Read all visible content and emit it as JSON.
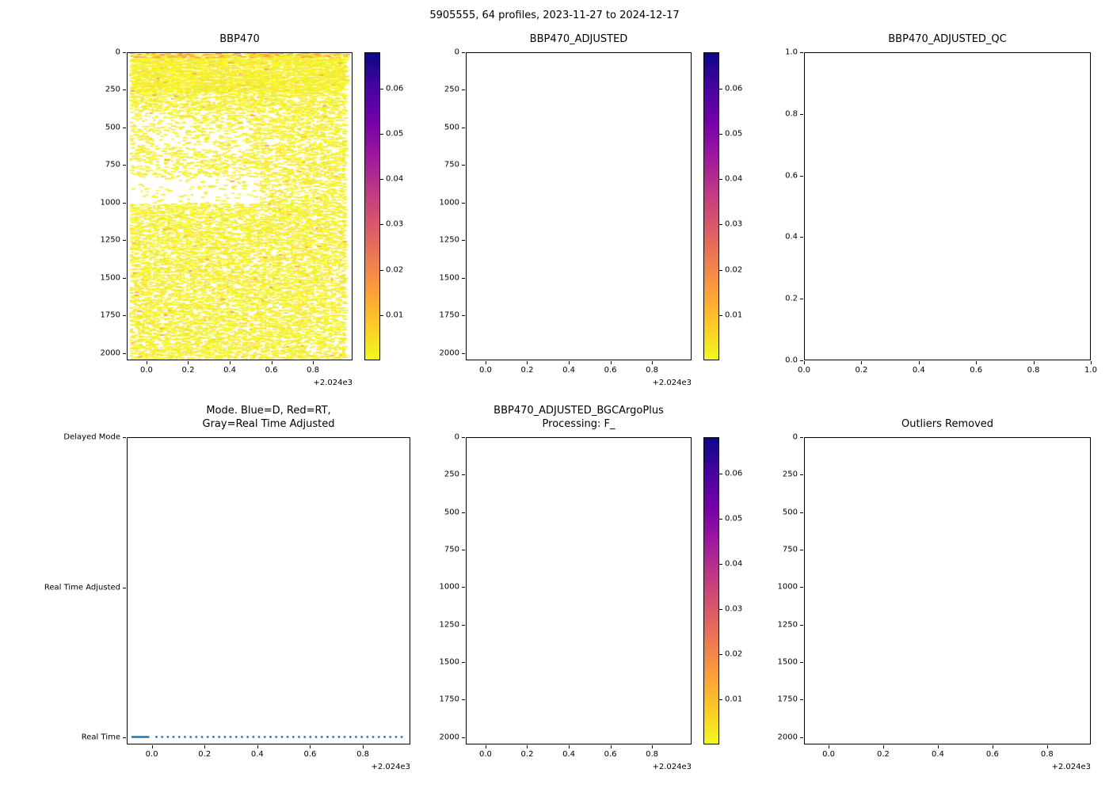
{
  "figure_title": "5905555, 64 profiles, 2023-11-27 to 2024-12-17",
  "colors": {
    "axes_edge": "#000000",
    "text": "#000000",
    "background": "#ffffff",
    "mode_line_blue": "#1f77b4",
    "scatter_yellow": "#f0f921",
    "scatter_orange": "#fca636"
  },
  "colormap_plasma_r_low_to_high": [
    "#f0f921",
    "#fdca26",
    "#fb9f3a",
    "#ed7953",
    "#d8576b",
    "#bd3786",
    "#9c179e",
    "#7201a8",
    "#46039f",
    "#0d0887"
  ],
  "chart_data": [
    {
      "id": "bbp470",
      "type": "heatmap",
      "title": "BBP470",
      "xlim": [
        -0.095,
        0.99
      ],
      "ylim": [
        0,
        2050
      ],
      "x_ticks": {
        "values": [
          0.0,
          0.2,
          0.4,
          0.6,
          0.8
        ],
        "labels": [
          "0.0",
          "0.2",
          "0.4",
          "0.6",
          "0.8"
        ]
      },
      "y_ticks": {
        "values": [
          0,
          250,
          500,
          750,
          1000,
          1250,
          1500,
          1750,
          2000
        ],
        "labels": [
          "0",
          "250",
          "500",
          "750",
          "1000",
          "1250",
          "1500",
          "1750",
          "2000"
        ]
      },
      "x_offset_text": "+2.024e3",
      "colorbar": {
        "vmin": 0,
        "vmax": 0.068,
        "tick_values": [
          0.01,
          0.02,
          0.03,
          0.04,
          0.05,
          0.06
        ],
        "tick_labels": [
          "0.01",
          "0.02",
          "0.03",
          "0.04",
          "0.05",
          "0.06"
        ],
        "colormap": "plasma reversed (yellow=low, dark blue=high)"
      },
      "data_summary": {
        "n_profiles": 64,
        "time_range_decimal_years": [
          2023.92,
          2024.96
        ],
        "depth_range_m": [
          0,
          2050
        ],
        "typical_value_range": [
          0.0005,
          0.004
        ],
        "appearance": "dense yellow horizontal dash markers (low backscatter ~0.001-0.003); slightly orange values near the surface; sparser/patchy coverage between ~350-1000 m depth, dense again below 1000 m"
      }
    },
    {
      "id": "bbp470_adjusted",
      "type": "heatmap",
      "title": "BBP470_ADJUSTED",
      "xlim": [
        -0.095,
        0.99
      ],
      "ylim": [
        0,
        2050
      ],
      "x_ticks": {
        "values": [
          0.0,
          0.2,
          0.4,
          0.6,
          0.8
        ],
        "labels": [
          "0.0",
          "0.2",
          "0.4",
          "0.6",
          "0.8"
        ]
      },
      "y_ticks": {
        "values": [
          0,
          250,
          500,
          750,
          1000,
          1250,
          1500,
          1750,
          2000
        ],
        "labels": [
          "0",
          "250",
          "500",
          "750",
          "1000",
          "1250",
          "1500",
          "1750",
          "2000"
        ]
      },
      "x_offset_text": "+2.024e3",
      "colorbar": {
        "vmin": 0,
        "vmax": 0.068,
        "tick_values": [
          0.01,
          0.02,
          0.03,
          0.04,
          0.05,
          0.06
        ],
        "tick_labels": [
          "0.01",
          "0.02",
          "0.03",
          "0.04",
          "0.05",
          "0.06"
        ],
        "colormap": "plasma reversed (yellow=low, dark blue=high)"
      },
      "data_summary": {
        "n_points": 0,
        "appearance": "empty axes - no adjusted data plotted"
      }
    },
    {
      "id": "bbp470_adjusted_qc",
      "type": "scatter",
      "title": "BBP470_ADJUSTED_QC",
      "xlim": [
        0,
        1
      ],
      "ylim": [
        1,
        0
      ],
      "x_ticks": {
        "values": [
          0.0,
          0.2,
          0.4,
          0.6,
          0.8,
          1.0
        ],
        "labels": [
          "0.0",
          "0.2",
          "0.4",
          "0.6",
          "0.8",
          "1.0"
        ]
      },
      "y_ticks": {
        "values": [
          1.0,
          0.8,
          0.6,
          0.4,
          0.2,
          0.0
        ],
        "labels": [
          "1.0",
          "0.8",
          "0.6",
          "0.4",
          "0.2",
          "0.0"
        ]
      },
      "data_summary": {
        "n_points": 0,
        "appearance": "empty axes - no QC flags plotted"
      }
    },
    {
      "id": "mode",
      "type": "scatter",
      "title": "Mode. Blue=D, Red=RT,\nGray=Real Time Adjusted",
      "xlim": [
        -0.095,
        0.98
      ],
      "ylim": [
        2.0,
        -0.045
      ],
      "x_ticks": {
        "values": [
          0.0,
          0.2,
          0.4,
          0.6,
          0.8
        ],
        "labels": [
          "0.0",
          "0.2",
          "0.4",
          "0.6",
          "0.8"
        ]
      },
      "y_ticks": {
        "values": [
          2,
          1,
          0
        ],
        "labels": [
          "Delayed Mode",
          "Real Time Adjusted",
          "Real Time"
        ]
      },
      "x_offset_text": "+2.024e3",
      "series": [
        {
          "name": "profile mode",
          "color": "#1f77b4",
          "marker": "dotted line of points",
          "y_category": "Real Time",
          "y_value": 0,
          "x_start": -0.08,
          "x_end": 0.95,
          "n_points": 64
        }
      ],
      "data_summary": {
        "note": "all 64 profiles are Real Time mode - blue dotted line along the Real Time level; solid at the left where early profiles overlap"
      }
    },
    {
      "id": "bbp470_adjusted_bgcargoplus",
      "type": "heatmap",
      "title": "BBP470_ADJUSTED_BGCArgoPlus\nProcessing: F_",
      "xlim": [
        -0.095,
        0.99
      ],
      "ylim": [
        0,
        2050
      ],
      "x_ticks": {
        "values": [
          0.0,
          0.2,
          0.4,
          0.6,
          0.8
        ],
        "labels": [
          "0.0",
          "0.2",
          "0.4",
          "0.6",
          "0.8"
        ]
      },
      "y_ticks": {
        "values": [
          0,
          250,
          500,
          750,
          1000,
          1250,
          1500,
          1750,
          2000
        ],
        "labels": [
          "0",
          "250",
          "500",
          "750",
          "1000",
          "1250",
          "1500",
          "1750",
          "2000"
        ]
      },
      "x_offset_text": "+2.024e3",
      "colorbar": {
        "vmin": 0,
        "vmax": 0.068,
        "tick_values": [
          0.01,
          0.02,
          0.03,
          0.04,
          0.05,
          0.06
        ],
        "tick_labels": [
          "0.01",
          "0.02",
          "0.03",
          "0.04",
          "0.05",
          "0.06"
        ],
        "colormap": "plasma reversed (yellow=low, dark blue=high)"
      },
      "data_summary": {
        "n_points": 0,
        "appearance": "empty axes - no BGCArgoPlus-processed data plotted"
      }
    },
    {
      "id": "outliers_removed",
      "type": "heatmap",
      "title": "Outliers Removed",
      "xlim": [
        -0.09,
        0.96
      ],
      "ylim": [
        0,
        2050
      ],
      "x_ticks": {
        "values": [
          0.0,
          0.2,
          0.4,
          0.6,
          0.8
        ],
        "labels": [
          "0.0",
          "0.2",
          "0.4",
          "0.6",
          "0.8"
        ]
      },
      "y_ticks": {
        "values": [
          0,
          250,
          500,
          750,
          1000,
          1250,
          1500,
          1750,
          2000
        ],
        "labels": [
          "0",
          "250",
          "500",
          "750",
          "1000",
          "1250",
          "1500",
          "1750",
          "2000"
        ]
      },
      "x_offset_text": "+2.024e3",
      "data_summary": {
        "n_points": 0,
        "appearance": "empty axes - no outlier-removed data plotted"
      }
    }
  ]
}
